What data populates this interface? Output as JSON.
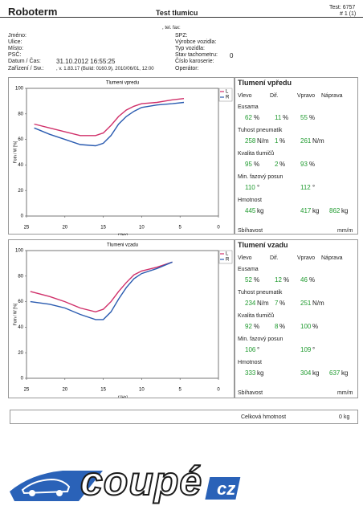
{
  "header": {
    "brand": "Roboterm",
    "title": "Test tlumicu",
    "test": "Test: 6757",
    "page": "# 1 (1)",
    "contact": ", tel. fax:"
  },
  "customer": {
    "labels": [
      "Jméno:",
      "Ulice:",
      "Místo:",
      "PSČ:",
      "Datum / Čas:",
      "Zařízení / Sw.:"
    ],
    "datetime": "31.10.2012 16:55:25",
    "device": ", v. 1.83.17 (Bulid: 0160.9), 2010/06/01, 12:00"
  },
  "vehicle": {
    "labels": [
      "SPZ:",
      "Výrobce vozidla:",
      "Typ vozidla:",
      "Stav tachometru:",
      "Číslo karoserie:",
      "Operátor:"
    ],
    "odometer": "0"
  },
  "chart_data": [
    {
      "type": "line",
      "title": "Tlumeni vpredu",
      "x_label": "f [Hz]",
      "y_label": "Fotn / W [%]",
      "x": [
        24,
        22,
        20,
        18,
        16,
        15,
        14,
        13,
        12,
        11,
        10,
        8,
        6,
        4.5
      ],
      "series": [
        {
          "name": "L",
          "color": "#d0306a",
          "values": [
            72,
            69,
            66,
            63,
            63,
            65,
            71,
            78,
            83,
            86,
            88,
            89,
            91,
            92
          ]
        },
        {
          "name": "R",
          "color": "#2a5bb0",
          "values": [
            69,
            64,
            60,
            56,
            55,
            57,
            63,
            72,
            78,
            82,
            85,
            87,
            88,
            89
          ]
        }
      ],
      "xlim": [
        25,
        0
      ],
      "ylim": [
        0,
        100
      ],
      "xticks": [
        25,
        20,
        15,
        10,
        5,
        0
      ],
      "yticks": [
        0,
        20,
        40,
        60,
        80,
        100
      ],
      "grid": false
    },
    {
      "type": "line",
      "title": "Tlumeni vzadu",
      "x_label": "f [Hz]",
      "y_label": "Fotn / W [%]",
      "x": [
        24.5,
        22,
        20,
        18,
        16,
        15,
        14,
        13,
        12,
        11,
        10,
        8,
        6
      ],
      "series": [
        {
          "name": "L",
          "color": "#d0306a",
          "values": [
            68,
            64,
            60,
            55,
            52,
            54,
            60,
            68,
            75,
            81,
            84,
            87,
            91
          ]
        },
        {
          "name": "R",
          "color": "#2a5bb0",
          "values": [
            60,
            58,
            55,
            50,
            46,
            46,
            52,
            62,
            71,
            78,
            82,
            86,
            91
          ]
        }
      ],
      "xlim": [
        25,
        0
      ],
      "ylim": [
        0,
        100
      ],
      "xticks": [
        25,
        20,
        15,
        10,
        5,
        0
      ],
      "yticks": [
        0,
        20,
        40,
        60,
        80,
        100
      ],
      "grid": false
    }
  ],
  "results": [
    {
      "title": "Tlumení vpředu",
      "columns": [
        "Vlevo",
        "Dif.",
        "Vpravo",
        "Náprava"
      ],
      "rows": [
        {
          "label": "Eusama",
          "cells": [
            {
              "value": "62",
              "unit": "%"
            },
            {
              "value": "11",
              "unit": "%"
            },
            {
              "value": "55",
              "unit": "%"
            },
            null
          ]
        },
        {
          "label": "Tuhost  pneumatik",
          "cells": [
            {
              "value": "258",
              "unit": "N/m"
            },
            {
              "value": "1",
              "unit": "%"
            },
            {
              "value": "261",
              "unit": "N/m"
            },
            null
          ]
        },
        {
          "label": "Kvalita  tlumičů",
          "cells": [
            {
              "value": "95",
              "unit": "%"
            },
            {
              "value": "2",
              "unit": "%"
            },
            {
              "value": "93",
              "unit": "%"
            },
            null
          ]
        },
        {
          "label": "Min. fazový posun",
          "cells": [
            {
              "value": "110",
              "unit": "°"
            },
            null,
            {
              "value": "112",
              "unit": "°"
            },
            null
          ]
        },
        {
          "label": "Hmotnost",
          "cells": [
            {
              "value": "445",
              "unit": "kg"
            },
            null,
            {
              "value": "417",
              "unit": "kg"
            },
            {
              "value": "862",
              "unit": "kg"
            }
          ]
        }
      ],
      "convergence": {
        "label": "Sbíhavost",
        "unit": "mm/m"
      }
    },
    {
      "title": "Tlumení vzadu",
      "columns": [
        "Vlevo",
        "Dif.",
        "Vpravo",
        "Náprava"
      ],
      "rows": [
        {
          "label": "Eusama",
          "cells": [
            {
              "value": "52",
              "unit": "%"
            },
            {
              "value": "12",
              "unit": "%"
            },
            {
              "value": "46",
              "unit": "%"
            },
            null
          ]
        },
        {
          "label": "Tuhost  pneumatik",
          "cells": [
            {
              "value": "234",
              "unit": "N/m"
            },
            {
              "value": "7",
              "unit": "%"
            },
            {
              "value": "251",
              "unit": "N/m"
            },
            null
          ]
        },
        {
          "label": "Kvalita  tlumičů",
          "cells": [
            {
              "value": "92",
              "unit": "%"
            },
            {
              "value": "8",
              "unit": "%"
            },
            {
              "value": "100",
              "unit": "%"
            },
            null
          ]
        },
        {
          "label": "Min. fazový posun",
          "cells": [
            {
              "value": "106",
              "unit": "°"
            },
            null,
            {
              "value": "109",
              "unit": "°"
            },
            null
          ]
        },
        {
          "label": "Hmotnost",
          "cells": [
            {
              "value": "333",
              "unit": "kg"
            },
            null,
            {
              "value": "304",
              "unit": "kg"
            },
            {
              "value": "637",
              "unit": "kg"
            }
          ]
        }
      ],
      "convergence": {
        "label": "Sbíhavost",
        "unit": "mm/m"
      }
    }
  ],
  "total": {
    "label": "Celková hmotnost",
    "value": "0",
    "unit": "kg"
  },
  "logo": {
    "word": "coupé",
    "suffix": "cz"
  }
}
